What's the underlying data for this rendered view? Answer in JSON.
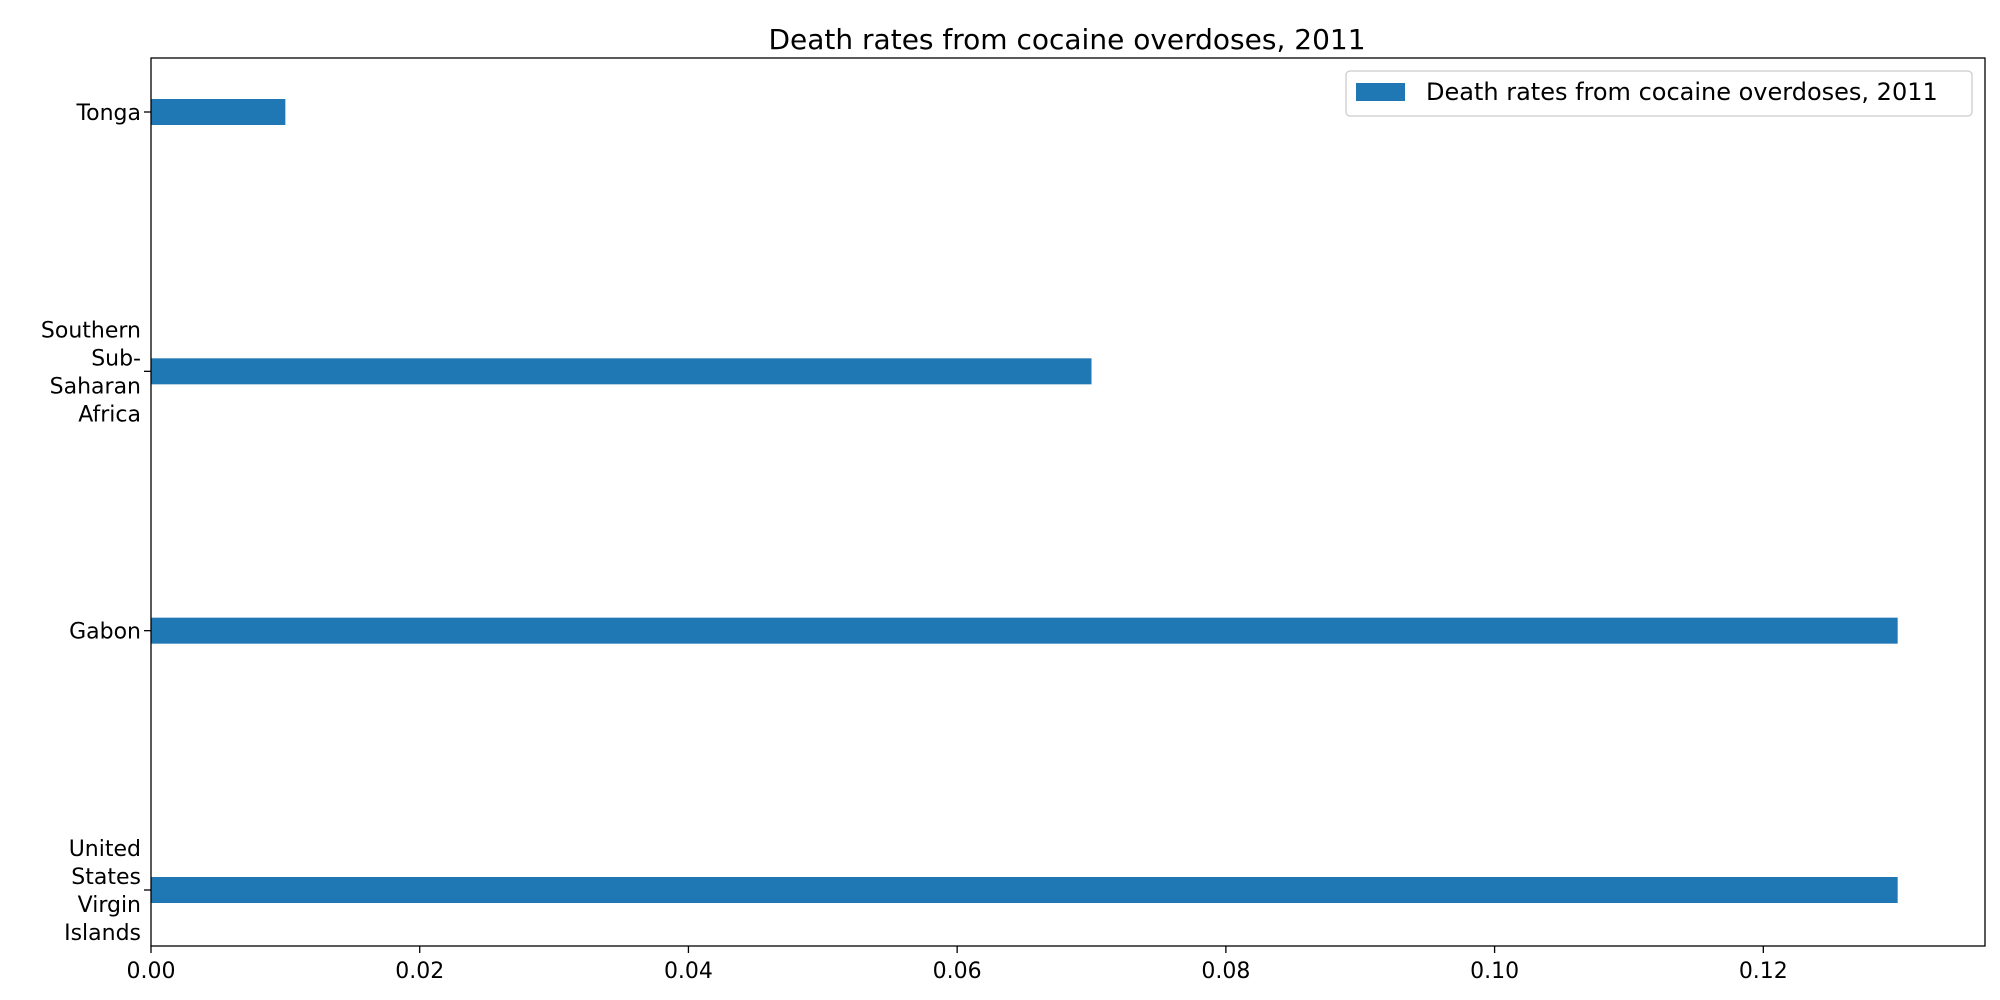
{
  "chart_data": {
    "type": "bar",
    "orientation": "horizontal",
    "title": "Death rates from cocaine overdoses, 2011",
    "xlabel": "",
    "ylabel": "",
    "categories": [
      "United States Virgin Islands",
      "Gabon",
      "Southern Sub-Saharan Africa",
      "Tonga"
    ],
    "category_lines": [
      [
        "United",
        "States",
        "Virgin",
        "Islands"
      ],
      [
        "Gabon"
      ],
      [
        "Southern",
        "Sub-",
        "Saharan",
        "Africa"
      ],
      [
        "Tonga"
      ]
    ],
    "series": [
      {
        "name": "Death rates from cocaine overdoses, 2011",
        "values": [
          0.13,
          0.13,
          0.07,
          0.01
        ]
      }
    ],
    "xlim": [
      0,
      0.1365
    ],
    "xticks": [
      0.0,
      0.02,
      0.04,
      0.06,
      0.08,
      0.1,
      0.12
    ],
    "xtick_labels": [
      "0.00",
      "0.02",
      "0.04",
      "0.06",
      "0.08",
      "0.10",
      "0.12"
    ],
    "grid": false,
    "legend": "top-right",
    "bar_color": "#1f77b4"
  }
}
